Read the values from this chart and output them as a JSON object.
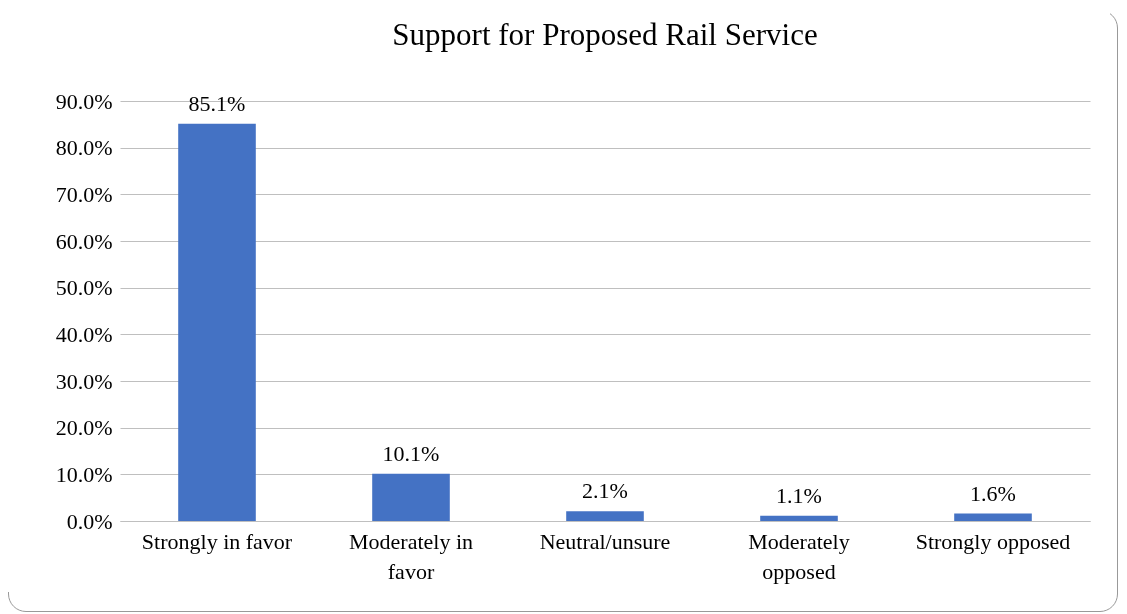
{
  "chart_data": {
    "type": "bar",
    "title": "Support for Proposed Rail Service",
    "categories": [
      "Strongly in favor",
      "Moderately in favor",
      "Neutral/unsure",
      "Moderately opposed",
      "Strongly opposed"
    ],
    "values": [
      85.1,
      10.1,
      2.1,
      1.1,
      1.6
    ],
    "value_labels": [
      "85.1%",
      "10.1%",
      "2.1%",
      "1.1%",
      "1.6%"
    ],
    "color": "#4472c4",
    "ylim": [
      0,
      90
    ],
    "yticks": [
      {
        "value": 0,
        "label": "0.0%"
      },
      {
        "value": 10,
        "label": "10.0%"
      },
      {
        "value": 20,
        "label": "20.0%"
      },
      {
        "value": 30,
        "label": "30.0%"
      },
      {
        "value": 40,
        "label": "40.0%"
      },
      {
        "value": 50,
        "label": "50.0%"
      },
      {
        "value": 60,
        "label": "60.0%"
      },
      {
        "value": 70,
        "label": "70.0%"
      },
      {
        "value": 80,
        "label": "80.0%"
      },
      {
        "value": 90,
        "label": "90.0%"
      }
    ],
    "grid": "y"
  }
}
